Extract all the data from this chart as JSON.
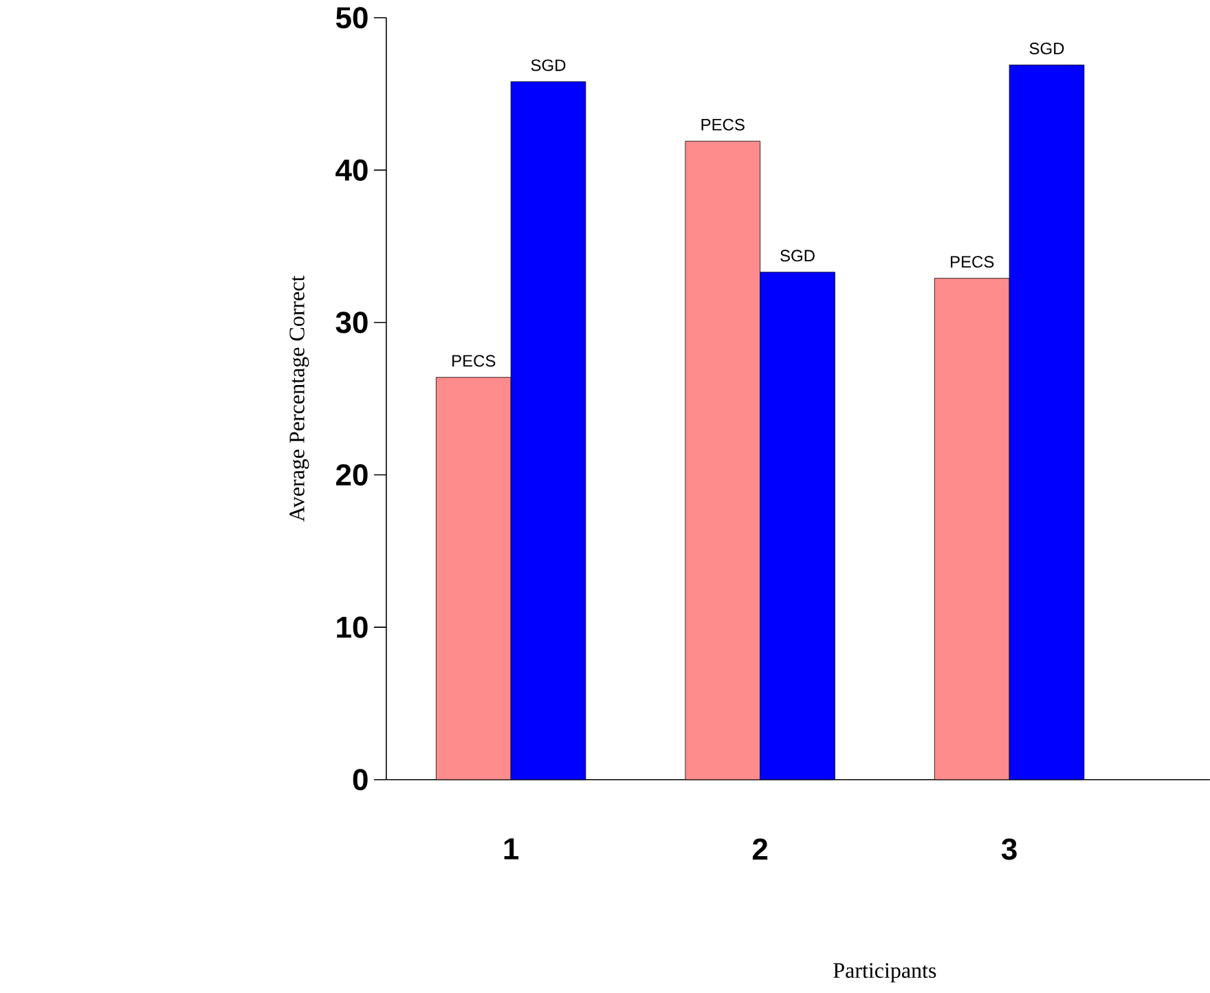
{
  "chart_data": {
    "type": "bar",
    "xlabel": "Participants",
    "ylabel": "Average Percentage Correct",
    "categories": [
      "1",
      "2",
      "3",
      null
    ],
    "series": [
      {
        "color": "#ff8c8c",
        "values": [
          26.4,
          41.9,
          32.9,
          null
        ],
        "value_labels": [
          "PECS",
          "PECS",
          "PECS",
          null
        ]
      },
      {
        "color": "#0000ff",
        "values": [
          45.8,
          33.3,
          46.9,
          null
        ],
        "value_labels": [
          "SGD",
          "SGD",
          "SGD",
          null
        ]
      }
    ],
    "ylim": [
      0,
      50
    ],
    "yticks": [
      0,
      10,
      20,
      30,
      40,
      50
    ],
    "grid": false
  }
}
